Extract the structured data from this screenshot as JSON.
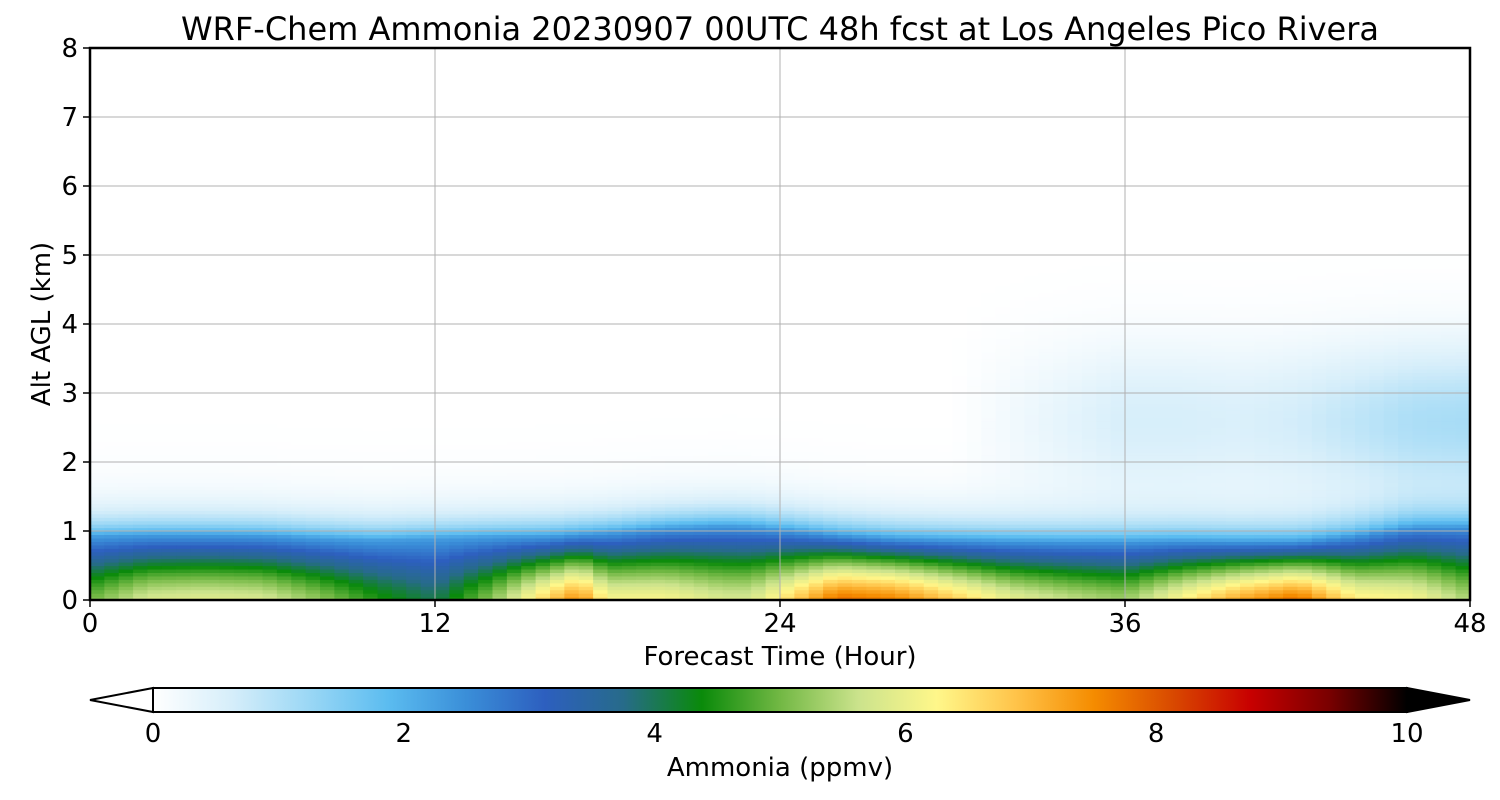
{
  "chart_data": {
    "type": "heatmap",
    "title": "WRF-Chem Ammonia  20230907 00UTC 48h fcst at Los Angeles Pico Rivera",
    "xlabel": "Forecast Time (Hour)",
    "ylabel": "Alt AGL (km)",
    "xlim": [
      0,
      48
    ],
    "ylim": [
      0,
      8
    ],
    "x_ticks": [
      0,
      12,
      24,
      36,
      48
    ],
    "y_ticks": [
      0,
      1,
      2,
      3,
      4,
      5,
      6,
      7,
      8
    ],
    "grid": true,
    "colorbar": {
      "label": "Ammonia  (ppmv)",
      "range": [
        0,
        10
      ],
      "ticks": [
        0,
        2,
        4,
        6,
        8,
        10
      ],
      "extend": "both",
      "orientation": "horizontal",
      "colors": [
        "#ffffff",
        "#d6eefa",
        "#9ad7f5",
        "#5bbcf0",
        "#3a8ed8",
        "#2d5fbf",
        "#276b8a",
        "#0a8a0a",
        "#72b844",
        "#cbe38c",
        "#fff78a",
        "#ffc44a",
        "#f58c00",
        "#d94a00",
        "#c80000",
        "#7a0000",
        "#000000"
      ]
    },
    "profile_times": [
      0,
      2,
      4,
      6,
      8,
      10,
      12,
      14,
      16,
      17,
      18,
      20,
      22,
      23,
      24,
      26,
      28,
      30,
      32,
      34,
      36,
      38,
      40,
      42,
      44,
      46,
      48
    ],
    "boundary_layer_top_km": [
      0.93,
      0.95,
      0.95,
      0.94,
      0.9,
      0.87,
      0.9,
      0.92,
      0.93,
      0.96,
      0.98,
      1.05,
      1.08,
      1.07,
      1.03,
      0.95,
      0.9,
      0.88,
      0.86,
      0.85,
      0.85,
      0.86,
      0.85,
      0.85,
      0.93,
      1.05,
      1.05
    ],
    "surface_max_ppmv": [
      5.0,
      5.8,
      5.9,
      5.8,
      5.2,
      4.5,
      4.0,
      5.2,
      6.8,
      7.5,
      6.2,
      6.2,
      5.8,
      5.8,
      6.4,
      7.8,
      7.6,
      6.8,
      6.0,
      5.6,
      5.3,
      6.3,
      7.2,
      7.8,
      6.4,
      6.2,
      5.4
    ],
    "aloft_plume_ppmv": [
      0,
      0,
      0,
      0,
      0,
      0,
      0,
      0,
      0,
      0,
      0,
      0,
      0,
      0,
      0,
      0,
      0,
      0,
      0.2,
      0.4,
      0.6,
      0.6,
      0.55,
      0.65,
      0.85,
      1.05,
      1.1
    ]
  }
}
